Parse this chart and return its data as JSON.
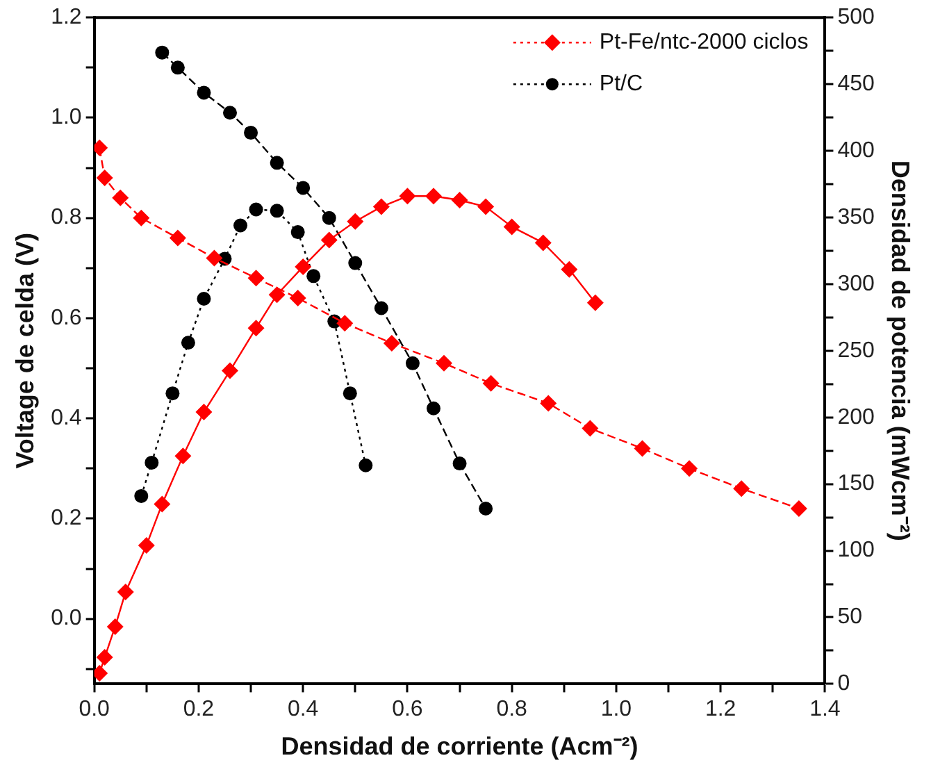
{
  "chart_data": {
    "type": "line",
    "xlabel": "Densidad de corriente (Acm⁻²)",
    "ylabel": "Voltage de celda (V)",
    "y2label": "Densidad de potencia (mWcm⁻²)",
    "xlim": [
      0,
      1.4
    ],
    "xticks": [
      {
        "value": 0,
        "label": "0.0"
      },
      {
        "value": 0.1,
        "label": null
      },
      {
        "value": 0.2,
        "label": "0.2"
      },
      {
        "value": 0.3,
        "label": null
      },
      {
        "value": 0.4,
        "label": "0.4"
      },
      {
        "value": 0.5,
        "label": null
      },
      {
        "value": 0.6,
        "label": "0.6"
      },
      {
        "value": 0.7,
        "label": null
      },
      {
        "value": 0.8,
        "label": "0.8"
      },
      {
        "value": 0.9,
        "label": null
      },
      {
        "value": 1,
        "label": "1.0"
      },
      {
        "value": 1.1,
        "label": null
      },
      {
        "value": 1.2,
        "label": "1.2"
      },
      {
        "value": 1.3,
        "label": null
      },
      {
        "value": 1.4,
        "label": "1.4"
      }
    ],
    "ylim": [
      -0.13,
      1.2
    ],
    "yticks": [
      {
        "value": -0.1,
        "label": null
      },
      {
        "value": 0,
        "label": "0.0"
      },
      {
        "value": 0.1,
        "label": null
      },
      {
        "value": 0.2,
        "label": "0.2"
      },
      {
        "value": 0.3,
        "label": null
      },
      {
        "value": 0.4,
        "label": "0.4"
      },
      {
        "value": 0.5,
        "label": null
      },
      {
        "value": 0.6,
        "label": "0.6"
      },
      {
        "value": 0.7,
        "label": null
      },
      {
        "value": 0.8,
        "label": "0.8"
      },
      {
        "value": 0.9,
        "label": null
      },
      {
        "value": 1,
        "label": "1.0"
      },
      {
        "value": 1.1,
        "label": null
      },
      {
        "value": 1.2,
        "label": "1.2"
      }
    ],
    "y2lim": [
      0,
      500
    ],
    "y2ticks": [
      0,
      {
        "value": 25,
        "label": null
      },
      50,
      {
        "value": 75,
        "label": null
      },
      100,
      {
        "value": 125,
        "label": null
      },
      150,
      {
        "value": 175,
        "label": null
      },
      200,
      {
        "value": 225,
        "label": null
      },
      250,
      {
        "value": 275,
        "label": null
      },
      300,
      {
        "value": 325,
        "label": null
      },
      350,
      {
        "value": 375,
        "label": null
      },
      400,
      {
        "value": 425,
        "label": null
      },
      450,
      {
        "value": 475,
        "label": null
      },
      500
    ],
    "grid": false,
    "legend": "top right",
    "series": [
      {
        "name": "Pt-Fe/ntc-2000 ciclos",
        "color": "#ff0000",
        "marker": "diamond",
        "line_style": "dashed",
        "x": [
          0.01,
          0.02,
          0.05,
          0.09,
          0.16,
          0.23,
          0.31,
          0.39,
          0.48,
          0.57,
          0.67,
          0.76,
          0.87,
          0.95,
          1.05,
          1.14,
          1.24,
          1.35
        ],
        "values": [
          0.94,
          0.88,
          0.84,
          0.8,
          0.76,
          0.72,
          0.68,
          0.64,
          0.59,
          0.55,
          0.51,
          0.47,
          0.43,
          0.38,
          0.34,
          0.3,
          0.26,
          0.22
        ]
      },
      {
        "color": "#ff0000",
        "marker": "diamond",
        "line_style": "solid",
        "axis": "y2",
        "x": [
          0.01,
          0.02,
          0.04,
          0.06,
          0.1,
          0.13,
          0.17,
          0.21,
          0.26,
          0.31,
          0.35,
          0.4,
          0.45,
          0.5,
          0.55,
          0.6,
          0.65,
          0.7,
          0.75,
          0.8,
          0.86,
          0.91,
          0.96
        ],
        "values": [
          8,
          20,
          43,
          69,
          104,
          135,
          171,
          204,
          235,
          267,
          292,
          313,
          333,
          347,
          358,
          366,
          366,
          363,
          358,
          343,
          331,
          311,
          286
        ]
      },
      {
        "name": "Pt/C",
        "color": "#000000",
        "marker": "circle",
        "line_style": "dashed",
        "x": [
          0.13,
          0.16,
          0.21,
          0.26,
          0.3,
          0.35,
          0.4,
          0.45,
          0.5,
          0.55,
          0.61,
          0.65,
          0.7,
          0.75
        ],
        "values": [
          1.13,
          1.1,
          1.05,
          1.01,
          0.97,
          0.91,
          0.86,
          0.8,
          0.71,
          0.62,
          0.51,
          0.42,
          0.31,
          0.22
        ]
      },
      {
        "color": "#000000",
        "marker": "circle",
        "line_style": "dotted",
        "axis": "y2",
        "x": [
          0.09,
          0.11,
          0.15,
          0.18,
          0.21,
          0.25,
          0.28,
          0.31,
          0.35,
          0.39,
          0.42,
          0.46,
          0.49,
          0.52
        ],
        "values": [
          141,
          166,
          218,
          256,
          289,
          319,
          344,
          356,
          355,
          339,
          306,
          272,
          218,
          164
        ]
      }
    ]
  }
}
